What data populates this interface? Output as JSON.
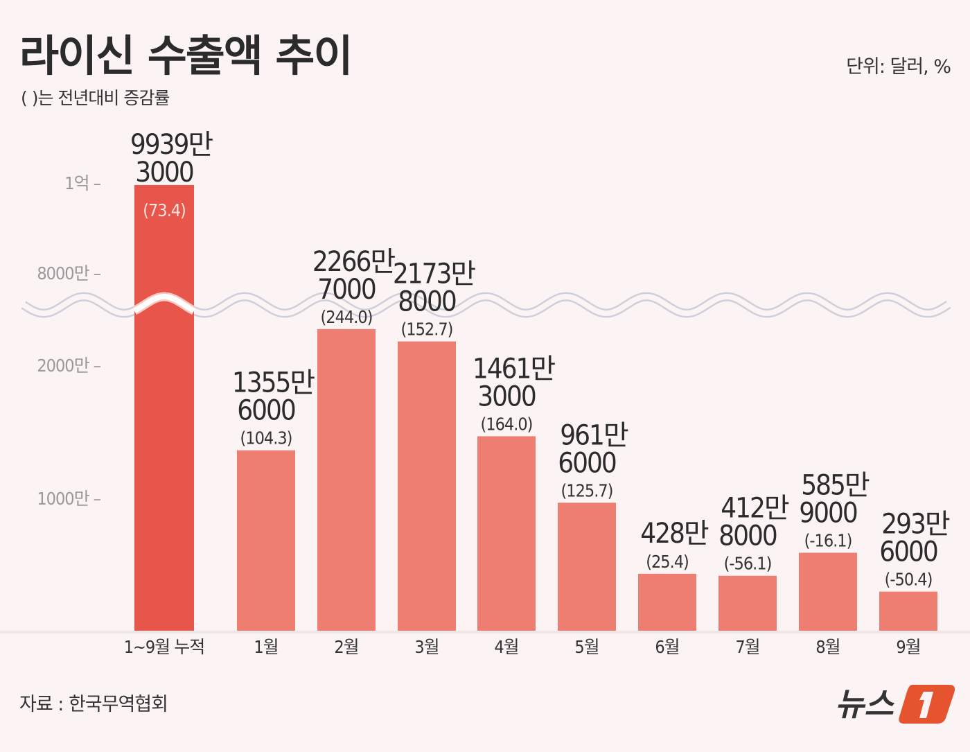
{
  "header": {
    "title": "라이신 수출액 추이",
    "subtitle": "( )는 전년대비 증감률",
    "unit": "단위: 달러, %"
  },
  "footer": {
    "source": "자료 : 한국무역협회",
    "logo_text": "뉴스1"
  },
  "colors": {
    "background": "#fcf4f4",
    "cumulative_bar": "#e8564b",
    "monthly_bar": "#ee7d72",
    "wave": "#cfcfdb",
    "brand": "#e5532f"
  },
  "chart_data": {
    "type": "bar",
    "title": "라이신 수출액 추이",
    "xlabel": "",
    "ylabel": "달러",
    "axis_break": true,
    "y_ticks": [
      {
        "label": "1000만 –",
        "value": 10000000
      },
      {
        "label": "2000만 –",
        "value": 20000000
      },
      {
        "label": "8000만 –",
        "value": 80000000
      },
      {
        "label": "1억 –",
        "value": 100000000
      }
    ],
    "categories": [
      "1~9월 누적",
      "1월",
      "2월",
      "3월",
      "4월",
      "5월",
      "6월",
      "7월",
      "8월",
      "9월"
    ],
    "values": [
      99393000,
      13556000,
      22667000,
      21738000,
      14613000,
      9616000,
      4280000,
      4128000,
      5859000,
      2936000
    ],
    "label_line1": [
      "9939만",
      "1355만",
      "2266만",
      "2173만",
      "1461만",
      "961만",
      "428만",
      "412만",
      "585만",
      "293만"
    ],
    "label_line2": [
      "3000",
      "6000",
      "7000",
      "8000",
      "3000",
      "6000",
      "",
      "8000",
      "9000",
      "6000"
    ],
    "yoy_change_pct_labels": [
      "(73.4)",
      "(104.3)",
      "(244.0)",
      "(152.7)",
      "(164.0)",
      "(125.7)",
      "(25.4)",
      "(-56.1)",
      "(-16.1)",
      "(-50.4)"
    ]
  }
}
